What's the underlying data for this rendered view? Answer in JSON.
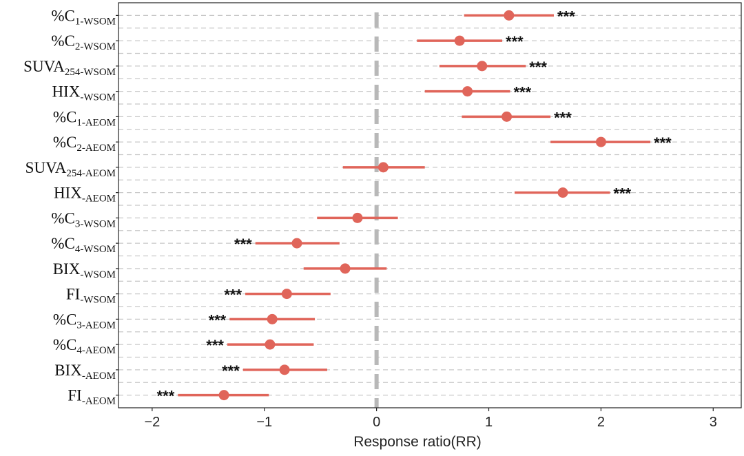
{
  "chart_data": {
    "type": "forest",
    "title": "",
    "xlabel": "Response ratio(RR)",
    "ylabel": "",
    "xlim": [
      -2.3,
      3.25
    ],
    "xticks": [
      -2,
      -1,
      0,
      1,
      2,
      3
    ],
    "xtick_labels": [
      "−2",
      "−1",
      "0",
      "1",
      "2",
      "3"
    ],
    "reference_line": 0,
    "point_color": "#e0655a",
    "grid_color": "#c8c8c8",
    "rows": [
      {
        "base": "%C",
        "sub": "1-WSOM",
        "mean": 1.18,
        "low": 0.78,
        "high": 1.58,
        "sig": "***"
      },
      {
        "base": "%C",
        "sub": "2-WSOM",
        "mean": 0.74,
        "low": 0.36,
        "high": 1.12,
        "sig": "***"
      },
      {
        "base": "SUVA",
        "sub": "254-WSOM",
        "mean": 0.94,
        "low": 0.56,
        "high": 1.33,
        "sig": "***"
      },
      {
        "base": "HIX",
        "sub": "-WSOM",
        "mean": 0.81,
        "low": 0.43,
        "high": 1.19,
        "sig": "***"
      },
      {
        "base": "%C",
        "sub": "1-AEOM",
        "mean": 1.16,
        "low": 0.76,
        "high": 1.55,
        "sig": "***"
      },
      {
        "base": "%C",
        "sub": "2-AEOM",
        "mean": 2.0,
        "low": 1.55,
        "high": 2.44,
        "sig": "***"
      },
      {
        "base": "SUVA",
        "sub": "254-AEOM",
        "mean": 0.06,
        "low": -0.3,
        "high": 0.43,
        "sig": ""
      },
      {
        "base": "HIX",
        "sub": "-AEOM",
        "mean": 1.66,
        "low": 1.23,
        "high": 2.08,
        "sig": "***"
      },
      {
        "base": "%C",
        "sub": "3-WSOM",
        "mean": -0.17,
        "low": -0.53,
        "high": 0.19,
        "sig": ""
      },
      {
        "base": "%C",
        "sub": "4-WSOM",
        "mean": -0.71,
        "low": -1.08,
        "high": -0.33,
        "sig": "***"
      },
      {
        "base": "BIX",
        "sub": "-WSOM",
        "mean": -0.28,
        "low": -0.65,
        "high": 0.09,
        "sig": ""
      },
      {
        "base": "FI",
        "sub": "-WSOM",
        "mean": -0.8,
        "low": -1.17,
        "high": -0.41,
        "sig": "***"
      },
      {
        "base": "%C",
        "sub": "3-AEOM",
        "mean": -0.93,
        "low": -1.31,
        "high": -0.55,
        "sig": "***"
      },
      {
        "base": "%C",
        "sub": "4-AEOM",
        "mean": -0.95,
        "low": -1.33,
        "high": -0.56,
        "sig": "***"
      },
      {
        "base": "BIX",
        "sub": "-AEOM",
        "mean": -0.82,
        "low": -1.19,
        "high": -0.44,
        "sig": "***"
      },
      {
        "base": "FI",
        "sub": "-AEOM",
        "mean": -1.36,
        "low": -1.77,
        "high": -0.96,
        "sig": "***"
      }
    ]
  }
}
